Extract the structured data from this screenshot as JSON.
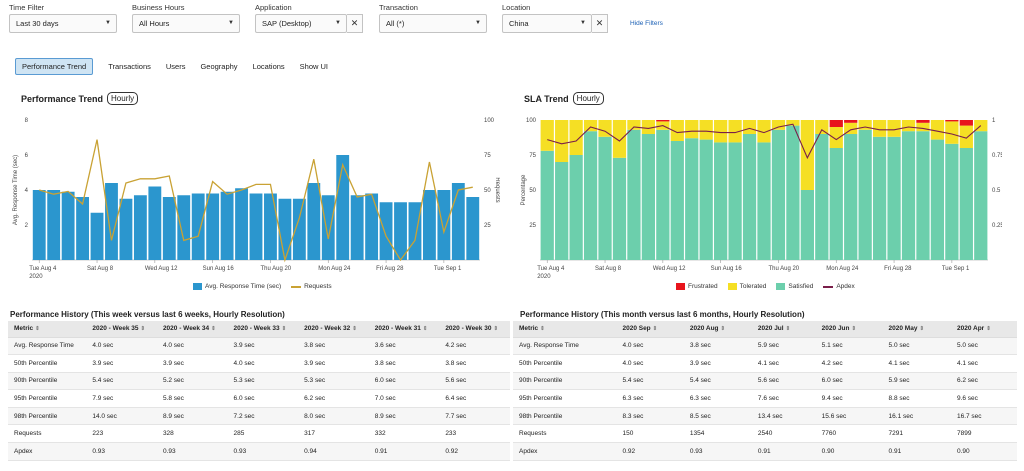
{
  "filters": [
    {
      "label": "Time Filter",
      "value": "Last 30 days"
    },
    {
      "label": "Business Hours",
      "value": "All Hours"
    },
    {
      "label": "Application",
      "value": "SAP (Desktop)"
    },
    {
      "label": "Transaction",
      "value": "All (*)"
    },
    {
      "label": "Location",
      "value": "China"
    }
  ],
  "clear_icon": "x-icon",
  "hide_filters": "Hide Filters",
  "tabs": [
    "Performance Trend",
    "Transactions",
    "Users",
    "Geography",
    "Locations",
    "Show UI"
  ],
  "performance_trend": {
    "title": "Performance Trend",
    "resolution": "Hourly",
    "chart_data": {
      "type": "bar",
      "ylabel": "Avg. Response Time (sec)",
      "y2label": "Requests",
      "ylim": [
        0,
        8
      ],
      "y2lim": [
        0,
        100
      ],
      "yticks": [
        "2",
        "4",
        "6",
        "8"
      ],
      "y2ticks": [
        "25",
        "50",
        "75",
        "100"
      ],
      "tick_labels": [
        "Tue Aug 4\n2020",
        "Sat Aug 8",
        "Wed Aug 12",
        "Sun Aug 16",
        "Thu Aug 20",
        "Mon Aug 24",
        "Fri Aug 28",
        "Tue Sep 1"
      ],
      "tick_index": [
        0,
        4,
        8,
        12,
        16,
        20,
        24,
        28
      ],
      "series": [
        {
          "name": "Avg. Response Time (sec)",
          "color": "#2b96ce",
          "values": [
            4.0,
            4.0,
            3.9,
            3.6,
            2.7,
            4.4,
            3.5,
            3.7,
            4.2,
            3.6,
            3.7,
            3.8,
            3.8,
            3.9,
            4.1,
            3.8,
            3.8,
            3.5,
            3.5,
            4.4,
            3.7,
            6.0,
            3.7,
            3.8,
            3.3,
            3.3,
            3.3,
            4.0,
            4.0,
            4.4,
            3.6
          ]
        },
        {
          "name": "Requests",
          "color": "#c9a234",
          "values": [
            50,
            47,
            49,
            40,
            86,
            14,
            55,
            58,
            58,
            60,
            14,
            17,
            56,
            47,
            50,
            54,
            54,
            0,
            30,
            72,
            15,
            68,
            45,
            47,
            17,
            0,
            14,
            70,
            20,
            50,
            52
          ]
        }
      ]
    },
    "legend": [
      "Avg. Response Time (sec)",
      "Requests"
    ]
  },
  "sla_trend": {
    "title": "SLA Trend",
    "resolution": "Hourly",
    "chart_data": {
      "type": "bar",
      "ylabel": "Percentage",
      "y2label": "Apdex",
      "ylim": [
        0,
        100
      ],
      "y2lim": [
        0,
        1
      ],
      "yticks": [
        "25",
        "50",
        "75",
        "100"
      ],
      "y2ticks": [
        "0.25",
        "0.5",
        "0.75",
        "1"
      ],
      "tick_labels": [
        "Tue Aug 4\n2020",
        "Sat Aug 8",
        "Wed Aug 12",
        "Sun Aug 16",
        "Thu Aug 20",
        "Mon Aug 24",
        "Fri Aug 28",
        "Tue Sep 1"
      ],
      "tick_index": [
        0,
        4,
        8,
        12,
        16,
        20,
        24,
        28
      ],
      "series": [
        {
          "name": "Satisfied",
          "color": "#6ccfac",
          "values": [
            78,
            70,
            75,
            92,
            88,
            73,
            93,
            90,
            93,
            85,
            87,
            86,
            84,
            84,
            90,
            84,
            93,
            96,
            50,
            90,
            80,
            90,
            93,
            88,
            88,
            92,
            92,
            86,
            83,
            80,
            92
          ]
        },
        {
          "name": "Tolerated",
          "color": "#f5df24",
          "values": [
            22,
            30,
            25,
            8,
            12,
            27,
            7,
            10,
            6,
            15,
            13,
            14,
            16,
            16,
            10,
            16,
            7,
            4,
            50,
            10,
            15,
            8,
            7,
            12,
            12,
            8,
            6,
            14,
            16,
            16,
            8
          ]
        },
        {
          "name": "Frustrated",
          "color": "#e8141c",
          "values": [
            0,
            0,
            0,
            0,
            0,
            0,
            0,
            0,
            1,
            0,
            0,
            0,
            0,
            0,
            0,
            0,
            0,
            0,
            0,
            0,
            5,
            2,
            0,
            0,
            0,
            0,
            2,
            0,
            1,
            4,
            0
          ]
        },
        {
          "name": "Apdex",
          "color": "#7a1f4a",
          "values": [
            0.86,
            0.83,
            0.85,
            0.95,
            0.92,
            0.85,
            0.95,
            0.94,
            0.96,
            0.91,
            0.92,
            0.92,
            0.91,
            0.91,
            0.94,
            0.91,
            0.95,
            0.97,
            0.73,
            0.93,
            0.86,
            0.93,
            0.95,
            0.93,
            0.93,
            0.95,
            0.94,
            0.92,
            0.9,
            0.87,
            0.96
          ]
        }
      ]
    },
    "legend": [
      "Frustrated",
      "Tolerated",
      "Satisfied",
      "Apdex"
    ]
  },
  "history_weeks": {
    "title": "Performance History (This week versus last 6 weeks, Hourly Resolution)",
    "columns": [
      "Metric",
      "2020 - Week 35",
      "2020 - Week 34",
      "2020 - Week 33",
      "2020 - Week 32",
      "2020 - Week 31",
      "2020 - Week 30"
    ],
    "rows": [
      [
        "Avg. Response Time",
        "4.0 sec",
        "4.0 sec",
        "3.9 sec",
        "3.8 sec",
        "3.6 sec",
        "4.2 sec"
      ],
      [
        "50th Percentile",
        "3.9 sec",
        "3.9 sec",
        "4.0 sec",
        "3.9 sec",
        "3.8 sec",
        "3.8 sec"
      ],
      [
        "90th Percentile",
        "5.4 sec",
        "5.2 sec",
        "5.3 sec",
        "5.3 sec",
        "6.0 sec",
        "5.6 sec"
      ],
      [
        "95th Percentile",
        "7.9 sec",
        "5.8 sec",
        "6.0 sec",
        "6.2 sec",
        "7.0 sec",
        "6.4 sec"
      ],
      [
        "98th Percentile",
        "14.0 sec",
        "8.9 sec",
        "7.2 sec",
        "8.0 sec",
        "8.9 sec",
        "7.7 sec"
      ],
      [
        "Requests",
        "223",
        "328",
        "285",
        "317",
        "332",
        "233"
      ],
      [
        "Apdex",
        "0.93",
        "0.93",
        "0.93",
        "0.94",
        "0.91",
        "0.92"
      ]
    ]
  },
  "history_months": {
    "title": "Performance History (This month versus last 6 months, Hourly Resolution)",
    "columns": [
      "Metric",
      "2020 Sep",
      "2020 Aug",
      "2020 Jul",
      "2020 Jun",
      "2020 May",
      "2020 Apr"
    ],
    "rows": [
      [
        "Avg. Response Time",
        "4.0 sec",
        "3.8 sec",
        "5.9 sec",
        "5.1 sec",
        "5.0 sec",
        "5.0 sec"
      ],
      [
        "50th Percentile",
        "4.0 sec",
        "3.9 sec",
        "4.1 sec",
        "4.2 sec",
        "4.1 sec",
        "4.1 sec"
      ],
      [
        "90th Percentile",
        "5.4 sec",
        "5.4 sec",
        "5.6 sec",
        "6.0 sec",
        "5.9 sec",
        "6.2 sec"
      ],
      [
        "95th Percentile",
        "6.3 sec",
        "6.3 sec",
        "7.6 sec",
        "9.4 sec",
        "8.8 sec",
        "9.6 sec"
      ],
      [
        "98th Percentile",
        "8.3 sec",
        "8.5 sec",
        "13.4 sec",
        "15.6 sec",
        "16.1 sec",
        "16.7 sec"
      ],
      [
        "Requests",
        "150",
        "1354",
        "2540",
        "7760",
        "7291",
        "7899"
      ],
      [
        "Apdex",
        "0.92",
        "0.93",
        "0.91",
        "0.90",
        "0.91",
        "0.90"
      ]
    ]
  }
}
